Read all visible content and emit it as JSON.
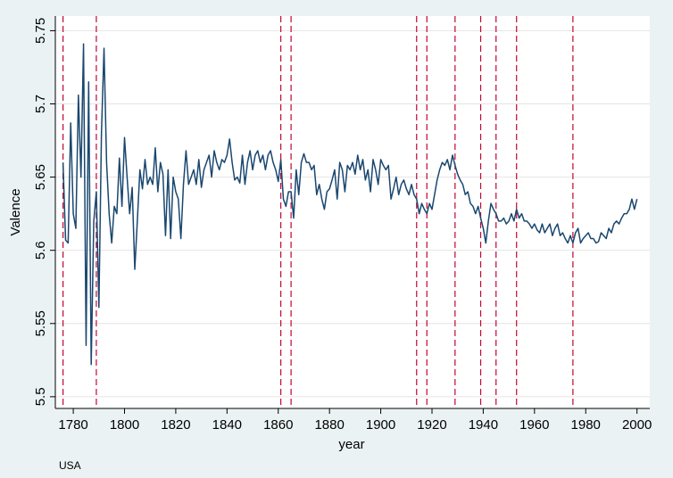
{
  "chart_data": {
    "type": "line",
    "xlabel": "year",
    "ylabel": "Valence",
    "note": "USA",
    "color": "#1a476f",
    "x": [
      1776,
      1777,
      1778,
      1779,
      1780,
      1781,
      1782,
      1783,
      1784,
      1785,
      1786,
      1787,
      1788,
      1789,
      1790,
      1791,
      1792,
      1793,
      1794,
      1795,
      1796,
      1797,
      1798,
      1799,
      1800,
      1801,
      1802,
      1803,
      1804,
      1805,
      1806,
      1807,
      1808,
      1809,
      1810,
      1811,
      1812,
      1813,
      1814,
      1815,
      1816,
      1817,
      1818,
      1819,
      1820,
      1821,
      1822,
      1823,
      1824,
      1825,
      1826,
      1827,
      1828,
      1829,
      1830,
      1831,
      1832,
      1833,
      1834,
      1835,
      1836,
      1837,
      1838,
      1839,
      1840,
      1841,
      1842,
      1843,
      1844,
      1845,
      1846,
      1847,
      1848,
      1849,
      1850,
      1851,
      1852,
      1853,
      1854,
      1855,
      1856,
      1857,
      1858,
      1859,
      1860,
      1861,
      1862,
      1863,
      1864,
      1865,
      1866,
      1867,
      1868,
      1869,
      1870,
      1871,
      1872,
      1873,
      1874,
      1875,
      1876,
      1877,
      1878,
      1879,
      1880,
      1881,
      1882,
      1883,
      1884,
      1885,
      1886,
      1887,
      1888,
      1889,
      1890,
      1891,
      1892,
      1893,
      1894,
      1895,
      1896,
      1897,
      1898,
      1899,
      1900,
      1901,
      1902,
      1903,
      1904,
      1905,
      1906,
      1907,
      1908,
      1909,
      1910,
      1911,
      1912,
      1913,
      1914,
      1915,
      1916,
      1917,
      1918,
      1919,
      1920,
      1921,
      1922,
      1923,
      1924,
      1925,
      1926,
      1927,
      1928,
      1929,
      1930,
      1931,
      1932,
      1933,
      1934,
      1935,
      1936,
      1937,
      1938,
      1939,
      1940,
      1941,
      1942,
      1943,
      1944,
      1945,
      1946,
      1947,
      1948,
      1949,
      1950,
      1951,
      1952,
      1953,
      1954,
      1955,
      1956,
      1957,
      1958,
      1959,
      1960,
      1961,
      1962,
      1963,
      1964,
      1965,
      1966,
      1967,
      1968,
      1969,
      1970,
      1971,
      1972,
      1973,
      1974,
      1975,
      1976,
      1977,
      1978,
      1979,
      1980,
      1981,
      1982,
      1983,
      1984,
      1985,
      1986,
      1987,
      1988,
      1989,
      1990,
      1991,
      1992,
      1993,
      1994,
      1995,
      1996,
      1997,
      1998,
      1999,
      2000
    ],
    "values": [
      5.66,
      5.607,
      5.605,
      5.687,
      5.625,
      5.615,
      5.706,
      5.65,
      5.741,
      5.535,
      5.715,
      5.522,
      5.62,
      5.64,
      5.561,
      5.68,
      5.738,
      5.66,
      5.625,
      5.605,
      5.63,
      5.625,
      5.663,
      5.63,
      5.677,
      5.65,
      5.625,
      5.643,
      5.587,
      5.62,
      5.655,
      5.642,
      5.662,
      5.645,
      5.65,
      5.645,
      5.67,
      5.64,
      5.66,
      5.652,
      5.61,
      5.655,
      5.608,
      5.65,
      5.64,
      5.635,
      5.608,
      5.645,
      5.668,
      5.645,
      5.65,
      5.655,
      5.645,
      5.662,
      5.643,
      5.655,
      5.66,
      5.665,
      5.65,
      5.668,
      5.66,
      5.655,
      5.662,
      5.66,
      5.665,
      5.676,
      5.66,
      5.648,
      5.65,
      5.646,
      5.665,
      5.645,
      5.66,
      5.668,
      5.655,
      5.665,
      5.668,
      5.66,
      5.665,
      5.655,
      5.665,
      5.668,
      5.66,
      5.655,
      5.647,
      5.662,
      5.635,
      5.63,
      5.64,
      5.64,
      5.622,
      5.655,
      5.638,
      5.66,
      5.666,
      5.66,
      5.66,
      5.655,
      5.658,
      5.638,
      5.645,
      5.635,
      5.628,
      5.64,
      5.642,
      5.648,
      5.655,
      5.635,
      5.66,
      5.655,
      5.64,
      5.658,
      5.655,
      5.66,
      5.652,
      5.665,
      5.655,
      5.662,
      5.648,
      5.655,
      5.64,
      5.662,
      5.655,
      5.645,
      5.662,
      5.658,
      5.655,
      5.658,
      5.635,
      5.642,
      5.65,
      5.638,
      5.645,
      5.648,
      5.642,
      5.638,
      5.645,
      5.638,
      5.635,
      5.625,
      5.632,
      5.628,
      5.625,
      5.632,
      5.628,
      5.638,
      5.648,
      5.655,
      5.66,
      5.658,
      5.662,
      5.655,
      5.665,
      5.658,
      5.652,
      5.648,
      5.645,
      5.638,
      5.64,
      5.632,
      5.63,
      5.625,
      5.63,
      5.622,
      5.615,
      5.605,
      5.62,
      5.632,
      5.628,
      5.625,
      5.62,
      5.62,
      5.622,
      5.618,
      5.62,
      5.625,
      5.62,
      5.628,
      5.622,
      5.625,
      5.62,
      5.62,
      5.618,
      5.615,
      5.618,
      5.614,
      5.612,
      5.618,
      5.612,
      5.615,
      5.618,
      5.61,
      5.615,
      5.618,
      5.61,
      5.612,
      5.608,
      5.605,
      5.61,
      5.605,
      5.612,
      5.615,
      5.605,
      5.608,
      5.61,
      5.612,
      5.608,
      5.608,
      5.605,
      5.606,
      5.612,
      5.61,
      5.608,
      5.615,
      5.612,
      5.618,
      5.62,
      5.618,
      5.622,
      5.625,
      5.625,
      5.628,
      5.635,
      5.628,
      5.635
    ],
    "reference_lines": [
      1776,
      1789,
      1861,
      1865,
      1914,
      1918,
      1929,
      1939,
      1945,
      1953,
      1975
    ],
    "reference_color": "#c10534",
    "xlim": [
      1773,
      2005
    ],
    "ylim": [
      5.492,
      5.76
    ],
    "xticks": [
      1780,
      1800,
      1820,
      1840,
      1860,
      1880,
      1900,
      1920,
      1940,
      1960,
      1980,
      2000
    ],
    "yticks": [
      5.5,
      5.55,
      5.6,
      5.65,
      5.7,
      5.75
    ],
    "grid": true
  }
}
